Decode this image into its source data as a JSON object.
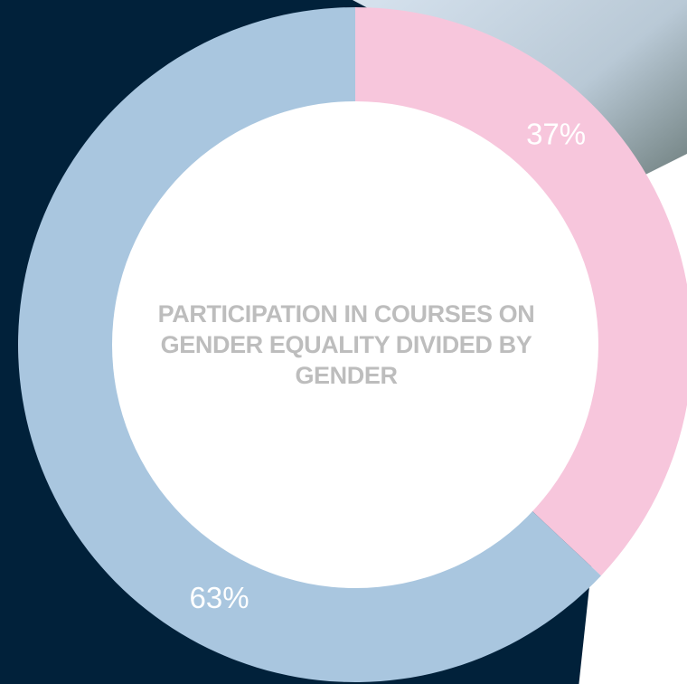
{
  "chart_data": {
    "type": "pie",
    "title": "PARTICIPATION IN COURSES ON GENDER EQUALITY DIVIDED BY GENDER",
    "values": [
      37,
      63
    ],
    "value_labels": [
      "37%",
      "63%"
    ],
    "colors": [
      "#f7c6dc",
      "#a9c6df"
    ],
    "donut": true
  }
}
